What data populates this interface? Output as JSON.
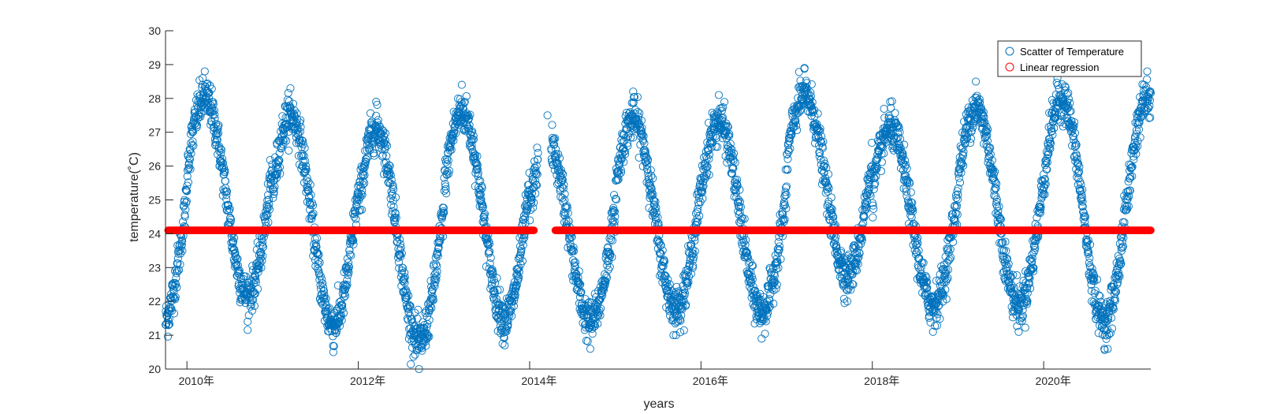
{
  "chart_data": {
    "type": "scatter",
    "title": "",
    "xlabel": "years",
    "ylabel": "temperature(˚C)",
    "xlim": [
      2009.75,
      2021.25
    ],
    "ylim": [
      20,
      30
    ],
    "x_ticks": [
      {
        "value": 2010,
        "label": "2010年"
      },
      {
        "value": 2012,
        "label": "2012年"
      },
      {
        "value": 2014,
        "label": "2014年"
      },
      {
        "value": 2016,
        "label": "2016年"
      },
      {
        "value": 2018,
        "label": "2018年"
      },
      {
        "value": 2020,
        "label": "2020年"
      }
    ],
    "y_ticks": [
      20,
      21,
      22,
      23,
      24,
      25,
      26,
      27,
      28,
      29,
      30
    ],
    "grid": false,
    "legend_position": "top-right",
    "colors": {
      "scatter": "#0072BD",
      "regression": "#FF0000",
      "axis": "#262626"
    },
    "series": [
      {
        "name": "Scatter of Temperature",
        "marker": "circle-open",
        "x_range": [
          2009.75,
          2021.25
        ],
        "waveform": {
          "period_years": 1,
          "peak_month": 3,
          "mean": 24.3,
          "amplitude": 3.0,
          "daily_noise": 0.3
        },
        "yearly_extremes": [
          {
            "year": 2010,
            "peak": 28.8,
            "trough": 21.4
          },
          {
            "year": 2011,
            "peak": 28.3,
            "trough": 20.5
          },
          {
            "year": 2012,
            "peak": 27.9,
            "trough": 20.0
          },
          {
            "year": 2013,
            "peak": 28.4,
            "trough": 20.7
          },
          {
            "year": 2014,
            "peak": 27.5,
            "trough": 20.6
          },
          {
            "year": 2015,
            "peak": 28.2,
            "trough": 21.0
          },
          {
            "year": 2016,
            "peak": 28.1,
            "trough": 20.9
          },
          {
            "year": 2017,
            "peak": 28.9,
            "trough": 22.0
          },
          {
            "year": 2018,
            "peak": 27.9,
            "trough": 21.1
          },
          {
            "year": 2019,
            "peak": 28.5,
            "trough": 21.1
          },
          {
            "year": 2020,
            "peak": 28.8,
            "trough": 20.6
          },
          {
            "year": 2021,
            "peak": 28.8,
            "trough": null
          }
        ],
        "gap": [
          2014.1,
          2014.25
        ]
      },
      {
        "name": "Linear regression",
        "marker": "circle-filled",
        "y": 24.1,
        "segments": [
          [
            2009.78,
            2014.05
          ],
          [
            2014.3,
            2021.25
          ]
        ]
      }
    ]
  }
}
